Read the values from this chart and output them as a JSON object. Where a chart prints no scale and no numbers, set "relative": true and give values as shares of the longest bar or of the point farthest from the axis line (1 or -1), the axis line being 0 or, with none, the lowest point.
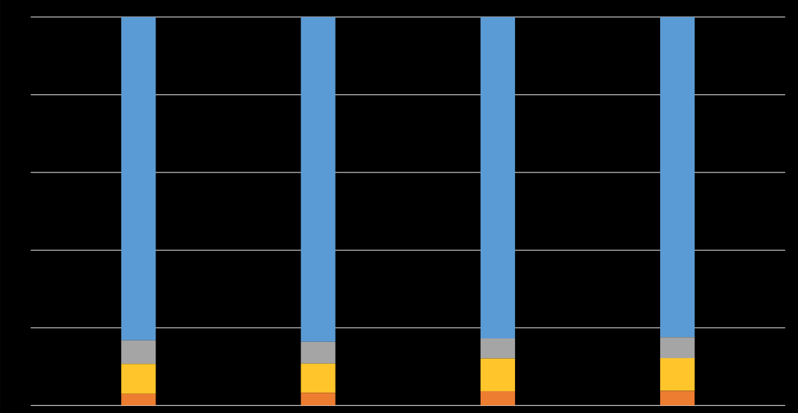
{
  "chart_data": {
    "type": "bar",
    "stacked": true,
    "relative": true,
    "grid": "y",
    "categories": [
      null,
      null,
      null,
      null
    ],
    "series": [
      {
        "color": "#ed7d31",
        "values": [
          0.03,
          0.033,
          0.037,
          0.038
        ]
      },
      {
        "color": "#ffc52a",
        "values": [
          0.077,
          0.075,
          0.084,
          0.084
        ]
      },
      {
        "color": "#a5a5a5",
        "values": [
          0.061,
          0.056,
          0.052,
          0.054
        ]
      },
      {
        "color": "#5b9bd5",
        "values": [
          0.832,
          0.836,
          0.827,
          0.824
        ]
      }
    ]
  }
}
